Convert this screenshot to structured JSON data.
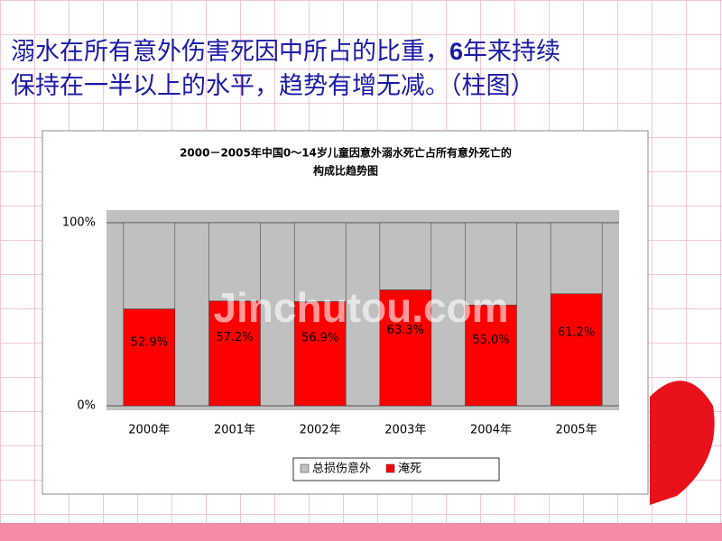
{
  "slide": {
    "heading": [
      "溺水在所有意外伤害死因中所占的比重，",
      "6",
      "年来持续",
      "保持在一半以上的水平，趋势有增无减。（柱图）"
    ],
    "watermark": "Jinchutou.com"
  },
  "chart_data": {
    "type": "stacked_bar",
    "title": [
      "2000－2005年中国0～14岁儿童因意外溺水死亡占所有意外死亡的",
      "构成比趋势图"
    ],
    "categories": [
      "2000年",
      "2001年",
      "2002年",
      "2003年",
      "2004年",
      "2005年"
    ],
    "series": [
      {
        "name": "总损伤意外",
        "color": "#c0c0c0",
        "values": [
          47.1,
          42.8,
          43.1,
          36.7,
          45.0,
          38.8
        ]
      },
      {
        "name": "淹死",
        "color": "#ff0000",
        "values": [
          52.9,
          57.2,
          56.9,
          63.3,
          55.0,
          61.2
        ],
        "value_labels": [
          "52.9%",
          "57.2%",
          "56.9%",
          "63.3%",
          "55.0%",
          "61.2%"
        ]
      }
    ],
    "ylim": [
      0,
      100
    ],
    "yticks": [
      {
        "value": 0,
        "label": "0%"
      },
      {
        "value": 100,
        "label": "100%"
      }
    ],
    "grid": true,
    "legend": "bottom"
  }
}
